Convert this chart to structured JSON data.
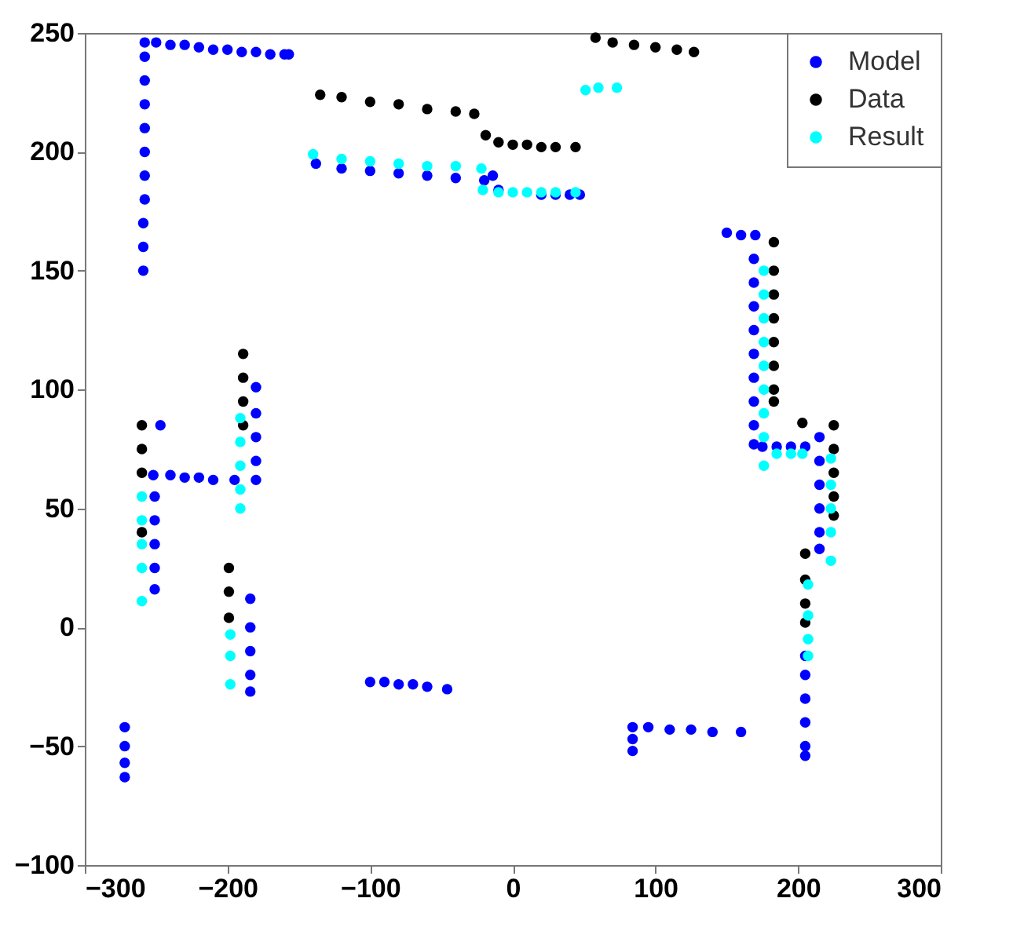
{
  "chart_data": {
    "type": "scatter",
    "xlim": [
      -300,
      300
    ],
    "ylim": [
      -100,
      250
    ],
    "xticks": [
      -300,
      -200,
      -100,
      0,
      100,
      200,
      300
    ],
    "yticks": [
      -100,
      -50,
      0,
      50,
      100,
      150,
      200,
      250
    ],
    "grid": false,
    "legend": "top right",
    "marker": "circle",
    "series": [
      {
        "name": "Model",
        "color": "#0000ff",
        "x": [
          -259,
          -259,
          -259,
          -258,
          -258,
          -258,
          -258,
          -258,
          -258,
          -258,
          -258,
          -250,
          -240,
          -230,
          -220,
          -210,
          -200,
          -190,
          -180,
          -170,
          -160,
          -157,
          -138,
          -120,
          -100,
          -80,
          -60,
          -40,
          -20,
          -14,
          -10,
          20,
          30,
          40,
          47,
          150,
          160,
          170,
          169,
          169,
          169,
          169,
          169,
          169,
          169,
          169,
          169,
          175,
          185,
          195,
          205,
          215,
          215,
          215,
          215,
          215,
          215,
          205,
          205,
          205,
          205,
          205,
          205,
          84,
          84,
          84,
          95,
          110,
          125,
          140,
          160,
          -100,
          -90,
          -80,
          -70,
          -60,
          -46,
          -272,
          -272,
          -272,
          -272,
          -184,
          -184,
          -184,
          -184,
          -184,
          -180,
          -180,
          -180,
          -180,
          -180,
          -252,
          -240,
          -230,
          -220,
          -210,
          -195,
          -251,
          -251,
          -251,
          -251,
          -251,
          -247
        ],
        "values": [
          150,
          160,
          170,
          180,
          190,
          200,
          210,
          220,
          230,
          240,
          246,
          246,
          245,
          245,
          244,
          243,
          243,
          242,
          242,
          241,
          241,
          241,
          195,
          193,
          192,
          191,
          190,
          189,
          188,
          190,
          184,
          182,
          182,
          182,
          182,
          166,
          165,
          165,
          155,
          145,
          135,
          125,
          115,
          105,
          95,
          85,
          77,
          76,
          76,
          76,
          76,
          80,
          70,
          60,
          50,
          40,
          33,
          -12,
          -20,
          -30,
          -40,
          -50,
          -54,
          -52,
          -47,
          -42,
          -42,
          -43,
          -43,
          -44,
          -44,
          -23,
          -23,
          -24,
          -24,
          -25,
          -26,
          -42,
          -50,
          -57,
          -63,
          12,
          0,
          -10,
          -20,
          -27,
          101,
          90,
          80,
          70,
          62,
          64,
          64,
          63,
          63,
          62,
          62,
          55,
          45,
          35,
          25,
          16,
          85
        ]
      },
      {
        "name": "Data",
        "color": "#000000",
        "x": [
          -135,
          -120,
          -100,
          -80,
          -60,
          -40,
          -27,
          -19,
          -10,
          0,
          10,
          20,
          30,
          44,
          58,
          70,
          85,
          100,
          115,
          127,
          183,
          183,
          183,
          183,
          183,
          183,
          183,
          183,
          203,
          225,
          225,
          225,
          225,
          225,
          205,
          205,
          205,
          205,
          -260,
          -260,
          -260,
          -260,
          -189,
          -189,
          -189,
          -189,
          -199,
          -199,
          -199
        ],
        "values": [
          224,
          223,
          221,
          220,
          218,
          217,
          216,
          207,
          204,
          203,
          203,
          202,
          202,
          202,
          248,
          246,
          245,
          244,
          243,
          242,
          162,
          150,
          140,
          130,
          120,
          110,
          100,
          95,
          86,
          85,
          75,
          65,
          55,
          47,
          31,
          20,
          10,
          2,
          85,
          75,
          65,
          40,
          115,
          105,
          95,
          85,
          25,
          15,
          4
        ]
      },
      {
        "name": "Result",
        "color": "#00ffff",
        "x": [
          -140,
          -120,
          -100,
          -80,
          -60,
          -40,
          -22,
          -21,
          -10,
          0,
          10,
          20,
          30,
          44,
          51,
          60,
          73,
          176,
          176,
          176,
          176,
          176,
          176,
          176,
          176,
          176,
          185,
          195,
          203,
          223,
          223,
          223,
          223,
          223,
          207,
          207,
          207,
          207,
          -260,
          -260,
          -260,
          -260,
          -260,
          -191,
          -191,
          -191,
          -191,
          -191,
          -198,
          -198,
          -198
        ],
        "values": [
          199,
          197,
          196,
          195,
          194,
          194,
          193,
          184,
          183,
          183,
          183,
          183,
          183,
          183,
          226,
          227,
          227,
          150,
          140,
          130,
          120,
          110,
          100,
          90,
          80,
          68,
          73,
          73,
          73,
          71,
          60,
          50,
          40,
          28,
          18,
          5,
          -5,
          -12,
          55,
          45,
          35,
          25,
          11,
          88,
          78,
          68,
          58,
          50,
          -3,
          -12,
          -24
        ]
      }
    ]
  }
}
